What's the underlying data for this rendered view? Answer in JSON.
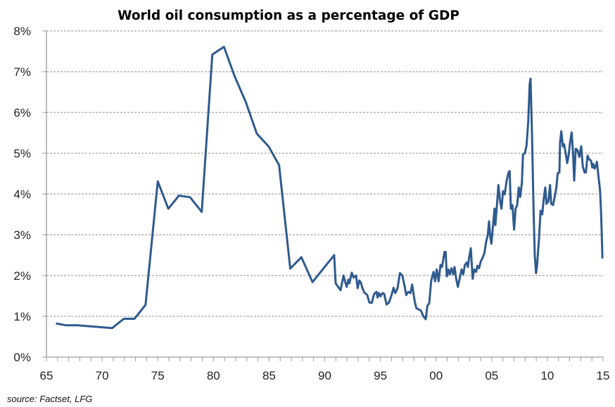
{
  "chart_data": {
    "type": "line",
    "title": "World oil consumption as a percentage of GDP",
    "xlabel": "",
    "ylabel": "",
    "source": "source: Factset, LFG",
    "xlim": [
      1965,
      2015
    ],
    "ylim": [
      0,
      8
    ],
    "grid": true,
    "legend": "none",
    "line_color": "#2F5A8E",
    "y_ticks": [
      0,
      1,
      2,
      3,
      4,
      5,
      6,
      7,
      8
    ],
    "y_tick_labels": [
      "0%",
      "1%",
      "2%",
      "3%",
      "4%",
      "5%",
      "6%",
      "7%",
      "8%"
    ],
    "x_ticks": [
      1965,
      1970,
      1975,
      1980,
      1985,
      1990,
      1995,
      2000,
      2005,
      2010,
      2015
    ],
    "x_tick_labels": [
      "65",
      "70",
      "75",
      "80",
      "85",
      "90",
      "95",
      "00",
      "05",
      "10",
      "15"
    ],
    "series": [
      {
        "name": "Oil consumption % of GDP",
        "x": [
          1965.93,
          1966.8,
          1967.8,
          1970.9,
          1971.95,
          1972.9,
          1973.9,
          1975.0,
          1975.95,
          1976.9,
          1977.9,
          1978.95,
          1979.9,
          1980.95,
          1981.9,
          1982.9,
          1983.9,
          1984.95,
          1985.9,
          1986.9,
          1987.9,
          1988.9,
          1990.85,
          1990.98,
          1991.21,
          1991.42,
          1991.69,
          1991.85,
          1991.97,
          1992.12,
          1992.22,
          1992.43,
          1992.6,
          1992.81,
          1992.96,
          1993.11,
          1993.24,
          1993.38,
          1993.59,
          1993.81,
          1994.01,
          1994.22,
          1994.44,
          1994.65,
          1994.75,
          1994.86,
          1995.01,
          1995.17,
          1995.34,
          1995.55,
          1995.77,
          1995.97,
          1996.18,
          1996.33,
          1996.54,
          1996.75,
          1996.97,
          1997.17,
          1997.32,
          1997.49,
          1997.7,
          1997.85,
          1998.08,
          1998.23,
          1998.44,
          1998.65,
          1998.86,
          1999.07,
          1999.22,
          1999.39,
          1999.56,
          1999.77,
          1999.91,
          2000.06,
          2000.23,
          2000.4,
          2000.54,
          2000.76,
          2000.86,
          2000.97,
          2001.11,
          2001.24,
          2001.39,
          2001.54,
          2001.66,
          2001.81,
          2001.96,
          2002.12,
          2002.29,
          2002.44,
          2002.59,
          2002.76,
          2002.86,
          2002.97,
          2003.12,
          2003.29,
          2003.43,
          2003.6,
          2003.71,
          2003.86,
          2004.02,
          2004.19,
          2004.34,
          2004.49,
          2004.65,
          2004.76,
          2004.87,
          2004.97,
          2005.12,
          2005.25,
          2005.33,
          2005.46,
          2005.6,
          2005.75,
          2005.88,
          2006.02,
          2006.17,
          2006.34,
          2006.51,
          2006.61,
          2006.72,
          2006.86,
          2007.01,
          2007.14,
          2007.29,
          2007.43,
          2007.56,
          2007.71,
          2007.81,
          2007.98,
          2008.13,
          2008.28,
          2008.41,
          2008.49,
          2008.62,
          2008.76,
          2008.87,
          2008.98,
          2009.08,
          2009.25,
          2009.39,
          2009.54,
          2009.67,
          2009.81,
          2009.92,
          2010.09,
          2010.24,
          2010.34,
          2010.51,
          2010.66,
          2010.81,
          2010.93,
          2011.08,
          2011.14,
          2011.25,
          2011.39,
          2011.5,
          2011.65,
          2011.78,
          2011.92,
          2012.03,
          2012.18,
          2012.3,
          2012.41,
          2012.55,
          2012.7,
          2012.87,
          2013.04,
          2013.18,
          2013.34,
          2013.46,
          2013.61,
          2013.75,
          2013.92,
          2014.03,
          2014.13,
          2014.24,
          2014.35,
          2014.45,
          2014.56,
          2014.73,
          2014.81,
          2014.88,
          2014.94
        ],
        "values": [
          0.82,
          0.78,
          0.78,
          0.71,
          0.94,
          0.94,
          1.28,
          4.31,
          3.64,
          3.96,
          3.92,
          3.56,
          7.42,
          7.61,
          6.89,
          6.26,
          5.48,
          5.17,
          4.71,
          2.17,
          2.45,
          1.84,
          2.5,
          1.81,
          1.72,
          1.64,
          2.0,
          1.83,
          1.72,
          1.9,
          1.81,
          2.07,
          1.95,
          2.0,
          1.69,
          1.88,
          1.83,
          1.69,
          1.57,
          1.53,
          1.34,
          1.33,
          1.55,
          1.6,
          1.46,
          1.57,
          1.49,
          1.57,
          1.55,
          1.29,
          1.34,
          1.49,
          1.7,
          1.57,
          1.69,
          2.06,
          2.0,
          1.75,
          1.52,
          1.6,
          1.57,
          1.78,
          1.37,
          1.2,
          1.17,
          1.14,
          1.0,
          0.93,
          1.26,
          1.32,
          1.86,
          2.09,
          1.86,
          2.15,
          1.86,
          2.26,
          2.21,
          2.58,
          2.58,
          1.98,
          2.15,
          2.03,
          2.18,
          2.03,
          2.21,
          1.92,
          1.72,
          1.92,
          2.15,
          2.03,
          2.26,
          2.32,
          2.21,
          2.44,
          2.67,
          1.92,
          2.15,
          2.09,
          2.24,
          2.18,
          2.35,
          2.44,
          2.55,
          2.81,
          3.01,
          3.33,
          2.95,
          2.78,
          3.24,
          3.64,
          3.24,
          3.7,
          4.22,
          3.82,
          3.64,
          4.07,
          3.99,
          4.33,
          4.53,
          4.56,
          3.64,
          3.73,
          3.13,
          3.64,
          3.73,
          4.16,
          3.93,
          4.28,
          4.97,
          5.0,
          5.19,
          5.77,
          6.69,
          6.83,
          5.43,
          3.59,
          2.49,
          2.06,
          2.26,
          2.9,
          3.59,
          3.5,
          3.87,
          4.16,
          3.76,
          3.82,
          4.22,
          3.76,
          3.73,
          3.93,
          4.16,
          4.51,
          4.53,
          5.25,
          5.54,
          5.17,
          5.22,
          4.99,
          4.76,
          4.97,
          5.25,
          5.51,
          5.02,
          4.33,
          5.11,
          5.08,
          4.91,
          5.17,
          4.68,
          4.53,
          4.53,
          4.94,
          4.85,
          4.82,
          4.65,
          4.74,
          4.62,
          4.68,
          4.79,
          4.51,
          4.1,
          3.64,
          3.07,
          2.44
        ]
      }
    ]
  }
}
